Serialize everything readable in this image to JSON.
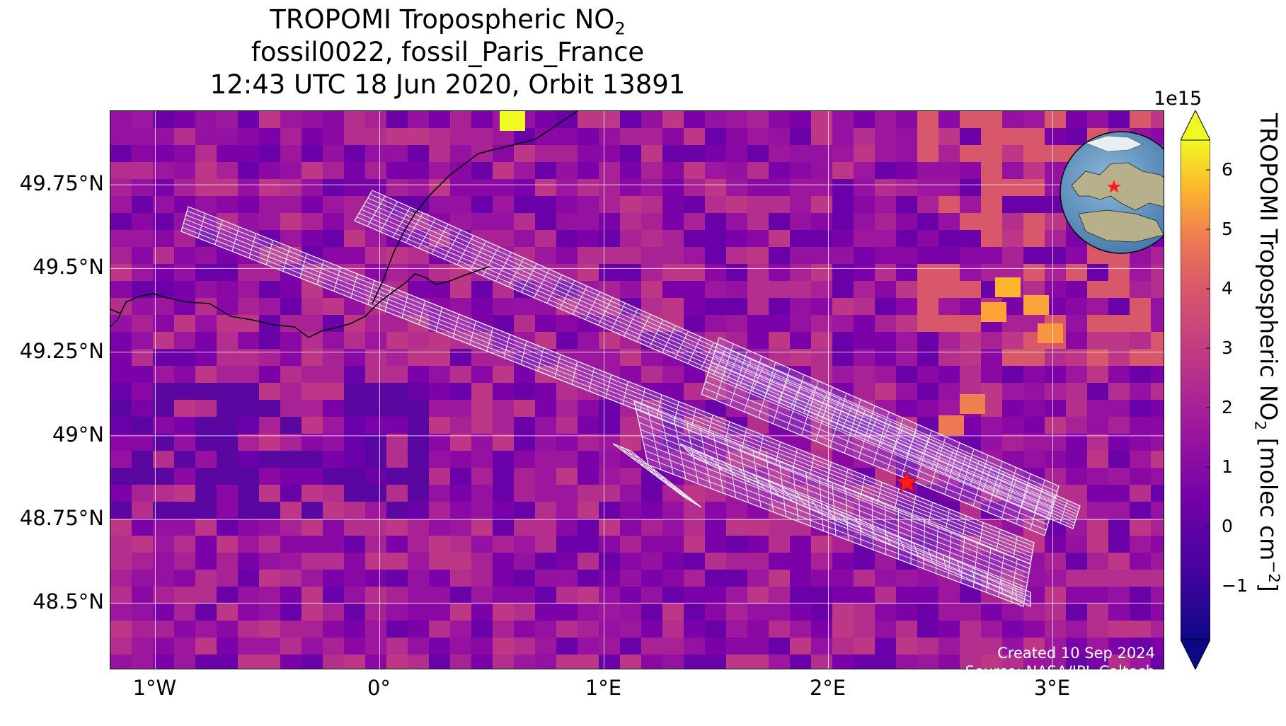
{
  "title": {
    "line1_prefix": "TROPOMI Tropospheric NO",
    "line1_sub": "2",
    "line2": "fossil0022, fossil_Paris_France",
    "line3": "12:43 UTC 18 Jun 2020, Orbit 13891"
  },
  "map": {
    "lon_range": [
      -1.2,
      3.5
    ],
    "lat_range": [
      48.3,
      49.97
    ],
    "lon_ticks": [
      {
        "value": -1,
        "label": "1°W"
      },
      {
        "value": 0,
        "label": "0°"
      },
      {
        "value": 1,
        "label": "1°E"
      },
      {
        "value": 2,
        "label": "2°E"
      },
      {
        "value": 3,
        "label": "3°E"
      }
    ],
    "lat_ticks": [
      {
        "value": 49.75,
        "label": "49.75°N"
      },
      {
        "value": 49.5,
        "label": "49.5°N"
      },
      {
        "value": 49.25,
        "label": "49.25°N"
      },
      {
        "value": 49.0,
        "label": "49°N"
      },
      {
        "value": 48.75,
        "label": "48.75°N"
      },
      {
        "value": 48.5,
        "label": "48.5°N"
      }
    ],
    "gridlines": true,
    "target": {
      "name": "fossil_Paris_France",
      "lon": 2.35,
      "lat": 48.86,
      "marker": "star",
      "color": "#ff1a1a"
    },
    "inset_globe": {
      "position": "top-right",
      "marker": "star",
      "color": "#ff1a1a"
    },
    "credit_line1": "Created 10 Sep 2024",
    "credit_line2": "Source: NASA/JPL-Caltech"
  },
  "colorbar": {
    "colormap": "plasma",
    "min": -1.9,
    "max": 6.5,
    "exponent_label": "1e15",
    "ticks": [
      {
        "value": -1,
        "label": "−1"
      },
      {
        "value": 0,
        "label": "0"
      },
      {
        "value": 1,
        "label": "1"
      },
      {
        "value": 2,
        "label": "2"
      },
      {
        "value": 3,
        "label": "3"
      },
      {
        "value": 4,
        "label": "4"
      },
      {
        "value": 5,
        "label": "5"
      },
      {
        "value": 6,
        "label": "6"
      }
    ],
    "label_prefix": "TROPOMI Tropospheric NO",
    "label_sub": "2",
    "label_mid": " [molec cm",
    "label_sup": "−2",
    "label_end": "]",
    "extend": "both"
  }
}
